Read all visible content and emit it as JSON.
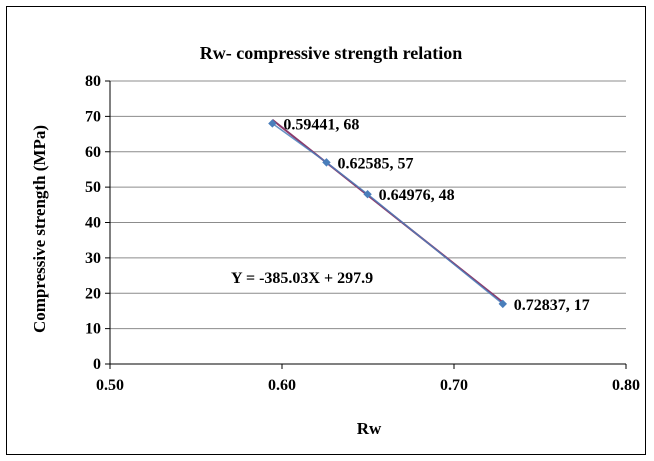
{
  "chart_data": {
    "type": "scatter",
    "title": "Rw- compressive strength relation",
    "xlabel": "Rw",
    "ylabel": "Compressive strength (MPa)",
    "xlim": [
      0.5,
      0.8
    ],
    "ylim": [
      0,
      80
    ],
    "x_ticks": [
      "0.50",
      "0.60",
      "0.70",
      "0.80"
    ],
    "y_ticks": [
      "0",
      "10",
      "20",
      "30",
      "40",
      "50",
      "60",
      "70",
      "80"
    ],
    "grid": {
      "horizontal": true,
      "vertical": false
    },
    "legend": "none",
    "series": [
      {
        "x": [
          0.59441,
          0.62585,
          0.64976,
          0.72837
        ],
        "y": [
          68,
          57,
          48,
          17
        ],
        "color": "#4a7ebb",
        "marker": "diamond",
        "labels": [
          "0.59441, 68",
          "0.62585, 57",
          "0.64976, 48",
          "0.72837, 17"
        ]
      }
    ],
    "trendline": {
      "slope": -385.03,
      "intercept": 297.9,
      "color": "#8b3a6b",
      "equation_label": "Y = -385.03X + 297.9"
    }
  }
}
